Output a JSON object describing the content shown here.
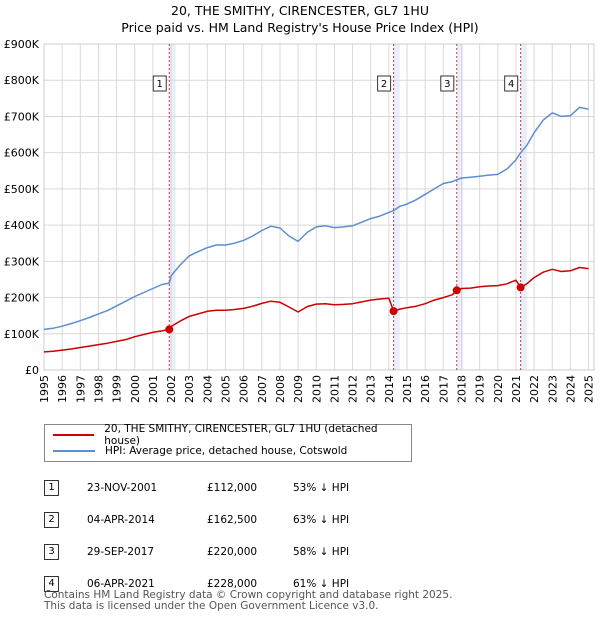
{
  "title": {
    "line1": "20, THE SMITHY, CIRENCESTER, GL7 1HU",
    "line2": "Price paid vs. HM Land Registry's House Price Index (HPI)"
  },
  "colors": {
    "property": "#cc0000",
    "hpi": "#5b8fd0",
    "grid": "#d9d9d9",
    "sale_line": "#cc3344",
    "band": "#e8eefa"
  },
  "legend": {
    "property_label": "20, THE SMITHY, CIRENCESTER, GL7 1HU (detached house)",
    "hpi_label": "HPI: Average price, detached house, Cotswold"
  },
  "sales": [
    {
      "num": "1",
      "date": "23-NOV-2001",
      "price": "£112,000",
      "hpi_diff": "53% ↓ HPI"
    },
    {
      "num": "2",
      "date": "04-APR-2014",
      "price": "£162,500",
      "hpi_diff": "63% ↓ HPI"
    },
    {
      "num": "3",
      "date": "29-SEP-2017",
      "price": "£220,000",
      "hpi_diff": "58% ↓ HPI"
    },
    {
      "num": "4",
      "date": "06-APR-2021",
      "price": "£228,000",
      "hpi_diff": "61% ↓ HPI"
    }
  ],
  "footer": {
    "line1": "Contains HM Land Registry data © Crown copyright and database right 2025.",
    "line2": "This data is licensed under the Open Government Licence v3.0."
  },
  "chart_data": {
    "type": "line",
    "title": "20, THE SMITHY, CIRENCESTER, GL7 1HU — Price paid vs. HM Land Registry's House Price Index (HPI)",
    "xlabel": "",
    "ylabel": "",
    "xlim": [
      1995,
      2025.3
    ],
    "ylim": [
      0,
      900000
    ],
    "x_ticks": [
      1995,
      1996,
      1997,
      1998,
      1999,
      2000,
      2001,
      2002,
      2003,
      2004,
      2005,
      2006,
      2007,
      2008,
      2009,
      2010,
      2011,
      2012,
      2013,
      2014,
      2015,
      2016,
      2017,
      2018,
      2019,
      2020,
      2021,
      2022,
      2023,
      2024,
      2025
    ],
    "y_ticks": [
      0,
      100000,
      200000,
      300000,
      400000,
      500000,
      600000,
      700000,
      800000,
      900000
    ],
    "y_tick_labels": [
      "£0",
      "£100K",
      "£200K",
      "£300K",
      "£400K",
      "£500K",
      "£600K",
      "£700K",
      "£800K",
      "£900K"
    ],
    "grid": true,
    "sale_markers": [
      {
        "label": "1",
        "x": 2001.9,
        "y": 112000
      },
      {
        "label": "2",
        "x": 2014.26,
        "y": 162500
      },
      {
        "label": "3",
        "x": 2017.74,
        "y": 220000
      },
      {
        "label": "4",
        "x": 2021.26,
        "y": 228000
      }
    ],
    "shaded_ranges": [
      [
        2001.9,
        2002.25
      ],
      [
        2014.26,
        2014.6
      ],
      [
        2017.74,
        2018.1
      ],
      [
        2021.26,
        2021.6
      ]
    ],
    "series": [
      {
        "name": "20, THE SMITHY, CIRENCESTER, GL7 1HU (detached house)",
        "color": "#cc0000",
        "x": [
          1995,
          1995.5,
          1996,
          1996.5,
          1997,
          1997.5,
          1998,
          1998.5,
          1999,
          1999.5,
          2000,
          2000.5,
          2001,
          2001.5,
          2001.9,
          2002,
          2002.5,
          2003,
          2003.5,
          2004,
          2004.5,
          2005,
          2005.5,
          2006,
          2006.5,
          2007,
          2007.5,
          2008,
          2008.5,
          2009,
          2009.5,
          2010,
          2010.5,
          2011,
          2011.5,
          2012,
          2012.5,
          2013,
          2013.5,
          2014,
          2014.26,
          2014.6,
          2015,
          2015.5,
          2016,
          2016.5,
          2017,
          2017.5,
          2017.74,
          2018,
          2018.5,
          2019,
          2019.5,
          2020,
          2020.5,
          2021,
          2021.26,
          2021.6,
          2022,
          2022.5,
          2023,
          2023.5,
          2024,
          2024.5,
          2025
        ],
        "y": [
          50000,
          52000,
          55000,
          58000,
          62000,
          66000,
          70000,
          74000,
          79000,
          84000,
          92000,
          98000,
          104000,
          108000,
          112000,
          120000,
          135000,
          148000,
          155000,
          162000,
          165000,
          165000,
          167000,
          170000,
          176000,
          184000,
          190000,
          187000,
          174000,
          160000,
          175000,
          182000,
          183000,
          180000,
          181000,
          183000,
          188000,
          193000,
          196000,
          198000,
          162500,
          168000,
          172000,
          176000,
          183000,
          193000,
          200000,
          208000,
          220000,
          225000,
          226000,
          230000,
          232000,
          233000,
          238000,
          248000,
          228000,
          238000,
          255000,
          270000,
          278000,
          272000,
          274000,
          283000,
          280000
        ]
      },
      {
        "name": "HPI: Average price, detached house, Cotswold",
        "color": "#5b8fd0",
        "x": [
          1995,
          1995.5,
          1996,
          1996.5,
          1997,
          1997.5,
          1998,
          1998.5,
          1999,
          1999.5,
          2000,
          2000.5,
          2001,
          2001.5,
          2001.9,
          2002,
          2002.5,
          2003,
          2003.5,
          2004,
          2004.5,
          2005,
          2005.5,
          2006,
          2006.5,
          2007,
          2007.5,
          2008,
          2008.5,
          2009,
          2009.5,
          2010,
          2010.5,
          2011,
          2011.5,
          2012,
          2012.5,
          2013,
          2013.5,
          2014,
          2014.26,
          2014.6,
          2015,
          2015.5,
          2016,
          2016.5,
          2017,
          2017.5,
          2017.74,
          2018,
          2018.5,
          2019,
          2019.5,
          2020,
          2020.5,
          2021,
          2021.26,
          2021.6,
          2022,
          2022.5,
          2023,
          2023.5,
          2024,
          2024.5,
          2025
        ],
        "y": [
          112000,
          115000,
          121000,
          128000,
          136000,
          145000,
          155000,
          164000,
          177000,
          190000,
          203000,
          214000,
          225000,
          236000,
          240000,
          260000,
          290000,
          315000,
          327000,
          338000,
          345000,
          345000,
          350000,
          358000,
          370000,
          385000,
          397000,
          392000,
          370000,
          355000,
          380000,
          395000,
          398000,
          393000,
          395000,
          398000,
          408000,
          418000,
          425000,
          435000,
          440000,
          452000,
          458000,
          470000,
          485000,
          500000,
          515000,
          520000,
          525000,
          530000,
          532000,
          535000,
          538000,
          540000,
          555000,
          580000,
          600000,
          620000,
          655000,
          690000,
          710000,
          700000,
          702000,
          725000,
          720000
        ]
      }
    ]
  }
}
